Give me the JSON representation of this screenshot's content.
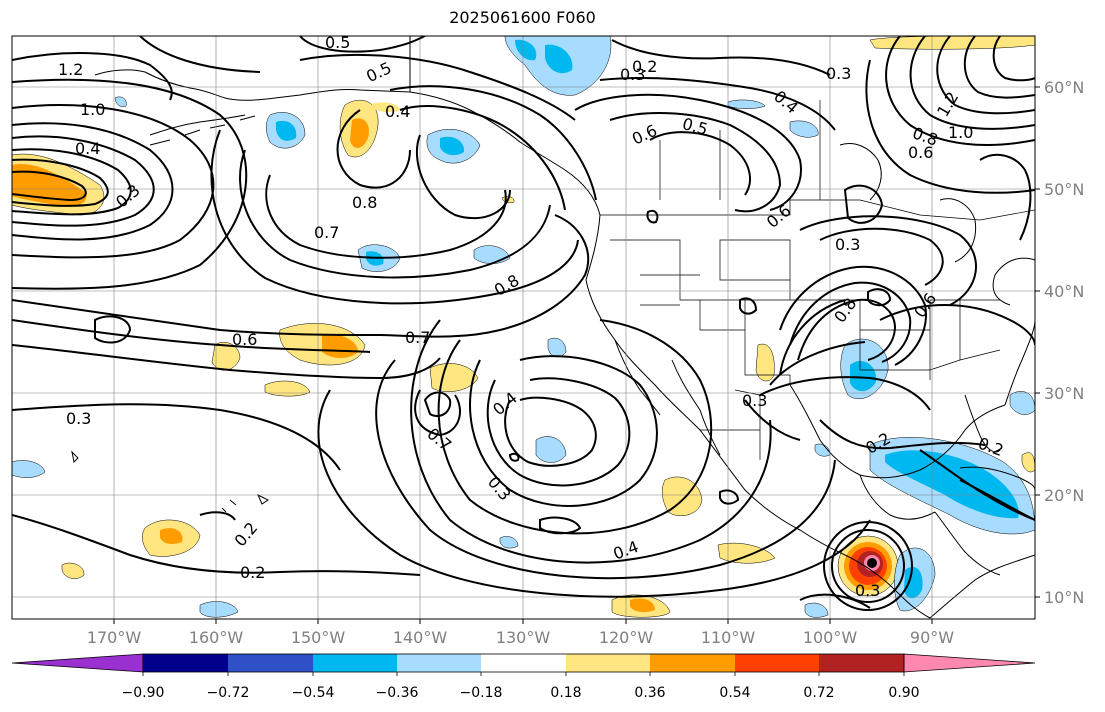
{
  "title": "2025061600 F060",
  "map": {
    "lat_labels": [
      "60°N",
      "50°N",
      "40°N",
      "30°N",
      "20°N",
      "10°N"
    ],
    "lon_labels": [
      "170°W",
      "160°W",
      "150°W",
      "140°W",
      "130°W",
      "120°W",
      "110°W",
      "100°W",
      "90°W"
    ],
    "contour_labels": [
      "1.2",
      "1.0",
      "0.5",
      "0.5",
      "0.4",
      "0.2",
      "0.3",
      "0.3",
      "0.4",
      "0.6",
      "0.5",
      "1.2",
      "0.8",
      "1.0",
      "0.6",
      "0.4",
      "0.3",
      "0.8",
      "0.7",
      "0.8",
      "0.6",
      "0.3",
      "0.6",
      "0.8",
      "0.6",
      "0.7",
      "0.4",
      "0.7",
      "0.3",
      "0.3",
      "0.3",
      "0.2",
      "0.2",
      "0.2",
      "0.4",
      "0.3",
      "0.2"
    ]
  },
  "colorbar": {
    "ticks": [
      "−0.90",
      "−0.72",
      "−0.54",
      "−0.36",
      "−0.18",
      "0.18",
      "0.36",
      "0.54",
      "0.72",
      "0.90"
    ],
    "colors": [
      "#9b30d0",
      "#00008b",
      "#3050c8",
      "#00b8f0",
      "#a8dcff",
      "#ffffff",
      "#ffe680",
      "#ff9d00",
      "#ff4000",
      "#b22222",
      "#ff88b0"
    ]
  }
}
